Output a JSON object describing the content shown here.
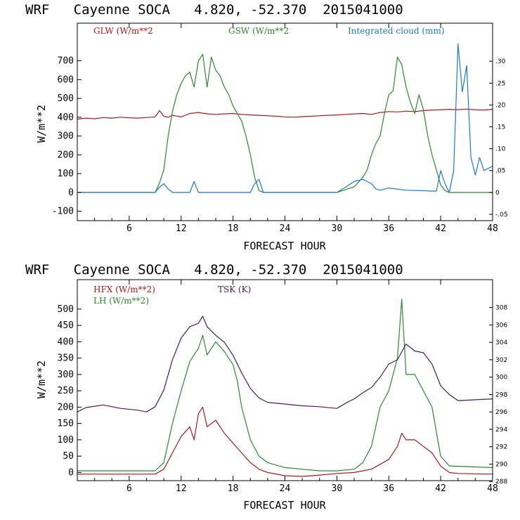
{
  "chart_data": [
    {
      "type": "line",
      "title": "WRF   Cayenne SOCA   4.820, -52.370  2015041000",
      "xlabel": "FORECAST HOUR",
      "ylabel": "W/m**2",
      "xlim": [
        0,
        48
      ],
      "ylim": [
        -150,
        900
      ],
      "x_ticks": [
        "6",
        "12",
        "18",
        "24",
        "30",
        "36",
        "42",
        "48"
      ],
      "y_ticks": [
        "-100",
        "0",
        "100",
        "200",
        "300",
        "400",
        "500",
        "600",
        "700"
      ],
      "y2_label": "mm",
      "y2lim": [
        -0.0645,
        0.387
      ],
      "y2_ticks": [
        "-.05",
        "0",
        ".05",
        ".10",
        ".15",
        ".20",
        ".25",
        ".30"
      ],
      "series": [
        {
          "name": "GLW (W/m**2",
          "color": "#b01818",
          "axis": "left",
          "x": [
            0,
            1,
            2,
            3,
            4,
            5,
            6,
            7,
            8,
            9,
            9.5,
            10,
            10.5,
            11,
            12,
            13,
            14,
            15,
            16,
            17,
            18,
            19,
            20,
            21,
            22,
            23,
            24,
            25,
            26,
            27,
            28,
            29,
            30,
            31,
            32,
            33,
            34,
            35,
            36,
            37,
            38,
            39,
            40,
            41,
            42,
            43,
            44,
            45,
            46,
            47,
            48
          ],
          "y": [
            390,
            395,
            392,
            398,
            395,
            400,
            397,
            395,
            398,
            402,
            435,
            405,
            400,
            410,
            402,
            420,
            425,
            418,
            415,
            418,
            420,
            415,
            412,
            410,
            408,
            405,
            402,
            400,
            403,
            405,
            408,
            410,
            412,
            415,
            418,
            420,
            415,
            425,
            430,
            428,
            432,
            430,
            435,
            438,
            440,
            442,
            440,
            443,
            440,
            438,
            442
          ]
        },
        {
          "name": "GSW (W/m**2",
          "color": "#2a8a2a",
          "axis": "left",
          "x": [
            0,
            9,
            9.5,
            10,
            10.5,
            11,
            11.5,
            12,
            12.5,
            13,
            13.5,
            14,
            14.5,
            15,
            15.5,
            16,
            16.5,
            17,
            17.5,
            18,
            18.5,
            19,
            19.5,
            20,
            20.5,
            21,
            21.5,
            22,
            30,
            32,
            33,
            33.5,
            34,
            34.5,
            35,
            35.5,
            36,
            36.5,
            37,
            37.5,
            38,
            38.5,
            39,
            39.5,
            40,
            40.5,
            41,
            41.5,
            42,
            42.5,
            43,
            48
          ],
          "y": [
            0,
            0,
            50,
            120,
            300,
            430,
            520,
            580,
            620,
            640,
            560,
            700,
            735,
            560,
            720,
            650,
            620,
            560,
            520,
            460,
            420,
            380,
            300,
            200,
            80,
            10,
            0,
            0,
            0,
            30,
            80,
            120,
            200,
            260,
            300,
            420,
            520,
            540,
            720,
            680,
            560,
            480,
            420,
            520,
            440,
            300,
            200,
            120,
            40,
            10,
            0,
            0
          ]
        },
        {
          "name": "Integrated cloud (mm)",
          "color": "#1a78d4",
          "axis": "right",
          "x": [
            0,
            9,
            9.5,
            10,
            10.5,
            11,
            13,
            13.5,
            14,
            14.5,
            20,
            20.5,
            21,
            21.5,
            22,
            30,
            31,
            32,
            33,
            34,
            34.5,
            35,
            36,
            38,
            40,
            41,
            41.5,
            42,
            42.5,
            43,
            43.5,
            44,
            44.5,
            45,
            45.5,
            46,
            46.5,
            47,
            48
          ],
          "y": [
            0,
            0,
            0.012,
            0.02,
            0.008,
            0,
            0,
            0.025,
            0,
            0,
            0,
            0.02,
            0.03,
            0,
            0,
            0,
            0.012,
            0.025,
            0.03,
            0.02,
            0.008,
            0.005,
            0.01,
            0.005,
            0.004,
            0.003,
            0.003,
            0.05,
            0.02,
            0,
            0.05,
            0.34,
            0.23,
            0.29,
            0.08,
            0.04,
            0.08,
            0.05,
            0.06
          ]
        }
      ]
    },
    {
      "type": "line",
      "title": "WRF   Cayenne SOCA   4.820, -52.370  2015041000",
      "xlabel": "FORECAST HOUR",
      "ylabel": "W/m**2",
      "xlim": [
        0,
        48
      ],
      "ylim": [
        -25,
        590
      ],
      "x_ticks": [
        "6",
        "12",
        "18",
        "24",
        "30",
        "36",
        "42",
        "48"
      ],
      "y_ticks": [
        "0",
        "50",
        "100",
        "150",
        "200",
        "250",
        "300",
        "350",
        "400",
        "450",
        "500"
      ],
      "y2_label": "K",
      "y2lim": [
        288.1,
        311.2
      ],
      "y2_ticks": [
        "288",
        "290",
        "292",
        "294",
        "296",
        "298",
        "300",
        "302",
        "304",
        "306",
        "308"
      ],
      "series": [
        {
          "name": "HFX (W/m**2)",
          "color": "#b01818",
          "axis": "left",
          "x": [
            0,
            9,
            10,
            11,
            12,
            13,
            13.5,
            14,
            14.5,
            15,
            16,
            17,
            18,
            19,
            20,
            21,
            22,
            24,
            26,
            28,
            30,
            32,
            34,
            36,
            37,
            37.5,
            38,
            39,
            40,
            41,
            42,
            43,
            44,
            48
          ],
          "y": [
            -5,
            -5,
            10,
            60,
            110,
            140,
            100,
            180,
            200,
            140,
            160,
            120,
            90,
            60,
            30,
            10,
            0,
            -10,
            -12,
            -8,
            -3,
            0,
            10,
            40,
            80,
            120,
            100,
            100,
            80,
            60,
            20,
            0,
            -3,
            -5
          ]
        },
        {
          "name": "LH  (W/m**2)",
          "color": "#2a8a2a",
          "axis": "left",
          "x": [
            0,
            9,
            10,
            11,
            12,
            13,
            14,
            14.5,
            15,
            16,
            17,
            18,
            18.5,
            19,
            20,
            21,
            22,
            24,
            26,
            28,
            30,
            32,
            33,
            34,
            35,
            36,
            37,
            37.5,
            38,
            39,
            40,
            41,
            42,
            43,
            48
          ],
          "y": [
            5,
            5,
            30,
            150,
            250,
            340,
            380,
            420,
            360,
            400,
            370,
            330,
            280,
            200,
            100,
            50,
            30,
            15,
            10,
            5,
            5,
            10,
            30,
            80,
            200,
            250,
            350,
            530,
            300,
            300,
            250,
            200,
            50,
            20,
            15
          ]
        },
        {
          "name": "TSK (K)",
          "color": "#4a1a5a",
          "axis": "right",
          "x": [
            0,
            1,
            3,
            5,
            7,
            8,
            9,
            10,
            11,
            12,
            13,
            14,
            14.5,
            15,
            16,
            17,
            18,
            19,
            20,
            21,
            22,
            24,
            26,
            28,
            30,
            31,
            32,
            33,
            34,
            35,
            36,
            37,
            38,
            39,
            40,
            41,
            42,
            43,
            44,
            48
          ],
          "y": [
            296.0,
            296.5,
            296.8,
            296.4,
            296.2,
            296.0,
            296.6,
            298.5,
            302.0,
            304.5,
            305.8,
            306.2,
            307.0,
            305.8,
            304.8,
            304.0,
            302.5,
            300.5,
            298.7,
            297.6,
            297.1,
            296.9,
            296.7,
            296.6,
            296.4,
            297.0,
            297.5,
            298.2,
            298.8,
            300.0,
            301.5,
            302.0,
            303.8,
            303.0,
            302.8,
            301.5,
            299.0,
            298.0,
            297.3,
            297.5
          ]
        }
      ]
    }
  ]
}
